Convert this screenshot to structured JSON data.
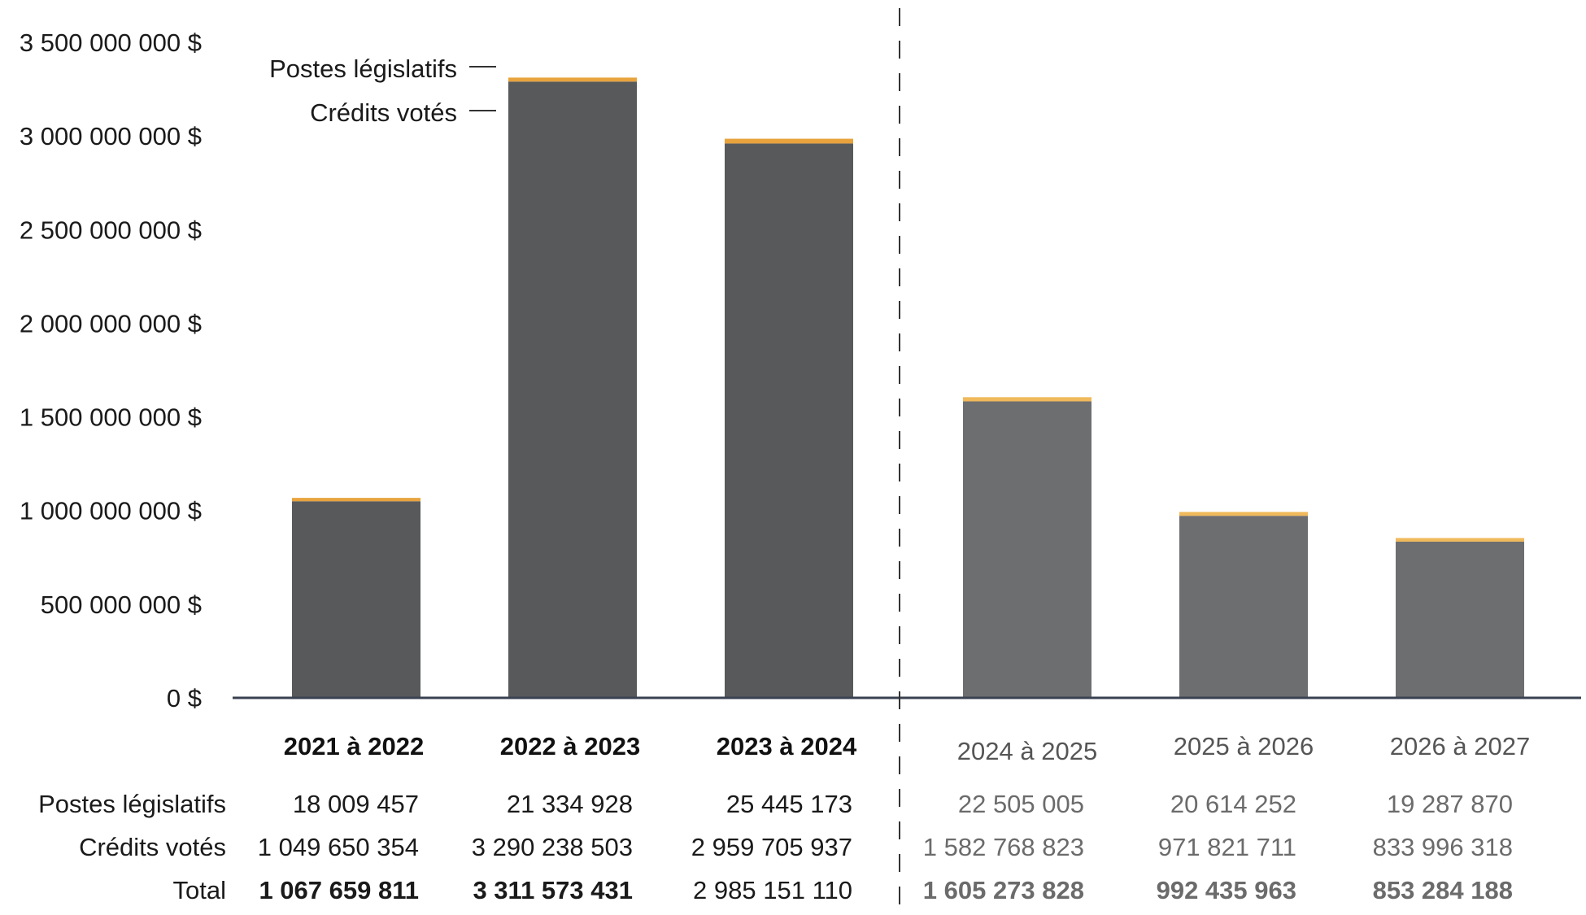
{
  "chart_data": {
    "type": "bar",
    "stacked": true,
    "title": "",
    "xlabel": "",
    "ylabel": "",
    "ylim": [
      0,
      3500000000
    ],
    "y_ticks": [
      {
        "value": 0,
        "label": "0 $"
      },
      {
        "value": 500000000,
        "label": "500 000 000 $"
      },
      {
        "value": 1000000000,
        "label": "1 000 000 000 $"
      },
      {
        "value": 1500000000,
        "label": "1 500 000 000 $"
      },
      {
        "value": 2000000000,
        "label": "2 000 000 000 $"
      },
      {
        "value": 2500000000,
        "label": "2 500 000 000 $"
      },
      {
        "value": 3000000000,
        "label": "3 000 000 000 $"
      },
      {
        "value": 3500000000,
        "label": "3 500 000 000 $"
      }
    ],
    "categories": [
      "2021 à 2022",
      "2022 à 2023",
      "2023 à 2024",
      "2024 à 2025",
      "2025 à 2026",
      "2026 à 2027"
    ],
    "projected_from_index": 3,
    "series": [
      {
        "name": "Crédits votés",
        "color": "#58595b",
        "projected_color": "#6d6e70",
        "values": [
          1049650354,
          3290238503,
          2959705937,
          1582768823,
          971821711,
          833996318
        ],
        "labels": [
          "1 049 650 354",
          "3 290 238 503",
          "2 959 705 937",
          "1 582 768 823",
          "971 821 711",
          "833 996 318"
        ]
      },
      {
        "name": "Postes législatifs",
        "color": "#e8a33d",
        "projected_color": "#f0b95a",
        "values": [
          18009457,
          21334928,
          25445173,
          22505005,
          20614252,
          19287870
        ],
        "labels": [
          "18 009 457",
          "21 334 928",
          "25 445 173",
          "22 505 005",
          "20 614 252",
          "19 287 870"
        ]
      }
    ],
    "totals": {
      "label": "Total",
      "values": [
        1067659811,
        3311573431,
        2985151110,
        1605273828,
        992435963,
        853284188
      ],
      "labels": [
        "1 067 659 811",
        "3 311 573 431",
        "2 985 151 110",
        "1 605 273 828",
        "992 435 963",
        "853 284 188"
      ]
    },
    "legend": {
      "placement": "top-left",
      "items": [
        "Postes législatifs",
        "Crédits votés"
      ]
    },
    "table_rows": [
      "Postes législatifs",
      "Crédits votés",
      "Total"
    ]
  }
}
